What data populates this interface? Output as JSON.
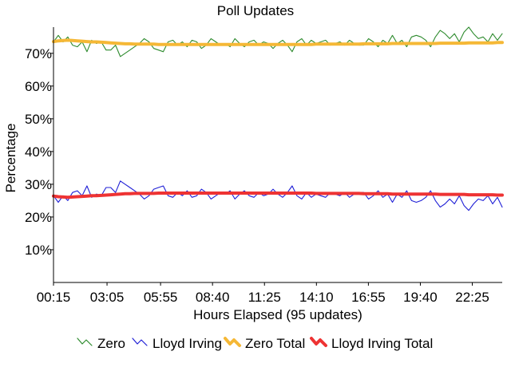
{
  "chart_data": {
    "type": "line",
    "title": "Poll Updates",
    "xlabel": "Hours Elapsed (95 updates)",
    "ylabel": "Percentage",
    "x_ticks": [
      "00:15",
      "03:05",
      "05:55",
      "08:40",
      "11:25",
      "14:10",
      "16:55",
      "19:40",
      "22:25"
    ],
    "y_ticks": [
      "10%",
      "20%",
      "30%",
      "40%",
      "50%",
      "60%",
      "70%"
    ],
    "ylim": [
      0,
      78
    ],
    "x_range_hours": [
      0.25,
      24
    ],
    "grid": false,
    "legend_position": "bottom",
    "series": [
      {
        "name": "Zero",
        "color": "#2e8b2e",
        "style": "thin",
        "values": [
          73.5,
          75.5,
          73.5,
          75.0,
          72.5,
          72.0,
          73.5,
          70.5,
          74.0,
          73.0,
          73.5,
          71.0,
          71.0,
          72.5,
          69.0,
          70.0,
          71.0,
          72.0,
          73.0,
          74.5,
          73.5,
          71.5,
          71.0,
          70.5,
          73.5,
          74.0,
          72.5,
          73.5,
          72.0,
          74.0,
          73.5,
          71.5,
          72.5,
          74.5,
          73.5,
          72.5,
          73.0,
          72.0,
          74.5,
          73.0,
          72.0,
          73.5,
          74.0,
          72.5,
          73.5,
          73.0,
          71.5,
          73.0,
          74.0,
          72.5,
          70.5,
          73.5,
          74.5,
          72.5,
          74.0,
          73.0,
          73.5,
          74.0,
          72.5,
          73.0,
          73.5,
          72.5,
          74.0,
          73.0,
          72.5,
          72.5,
          74.5,
          73.5,
          72.0,
          74.0,
          73.0,
          75.5,
          73.0,
          74.0,
          72.0,
          75.0,
          75.5,
          75.0,
          74.0,
          72.0,
          75.0,
          77.0,
          76.0,
          74.5,
          76.0,
          73.5,
          76.5,
          78.0,
          76.0,
          74.5,
          75.0,
          73.5,
          76.0,
          74.0,
          76.0
        ]
      },
      {
        "name": "Lloyd Irving",
        "color": "#1f1fd6",
        "style": "thin",
        "values": [
          26.5,
          24.5,
          26.5,
          25.0,
          27.5,
          28.0,
          26.5,
          29.5,
          26.0,
          27.0,
          26.5,
          29.0,
          29.0,
          27.5,
          31.0,
          30.0,
          29.0,
          28.0,
          27.0,
          25.5,
          26.5,
          28.5,
          29.0,
          29.5,
          26.5,
          26.0,
          27.5,
          26.5,
          28.0,
          26.0,
          26.5,
          28.5,
          27.5,
          25.5,
          26.5,
          27.5,
          27.0,
          28.0,
          25.5,
          27.0,
          28.0,
          26.5,
          26.0,
          27.5,
          26.5,
          27.0,
          28.5,
          27.0,
          26.0,
          27.5,
          29.5,
          26.5,
          25.5,
          27.5,
          26.0,
          27.0,
          26.5,
          26.0,
          27.5,
          27.0,
          26.5,
          27.5,
          26.0,
          27.0,
          27.5,
          27.5,
          25.5,
          26.5,
          28.0,
          26.0,
          27.0,
          24.5,
          27.0,
          26.0,
          28.0,
          25.0,
          24.5,
          25.0,
          26.0,
          28.0,
          25.0,
          23.0,
          24.0,
          25.5,
          24.0,
          26.5,
          23.5,
          22.0,
          24.0,
          25.5,
          25.0,
          26.5,
          24.0,
          26.0,
          23.0
        ]
      },
      {
        "name": "Zero Total",
        "color": "#f5b836",
        "style": "thick",
        "values": [
          73.6,
          73.8,
          73.9,
          74.0,
          73.9,
          73.8,
          73.7,
          73.6,
          73.5,
          73.5,
          73.4,
          73.3,
          73.2,
          73.1,
          73.0,
          72.9,
          72.9,
          72.8,
          72.8,
          72.8,
          72.8,
          72.8,
          72.7,
          72.7,
          72.7,
          72.7,
          72.7,
          72.7,
          72.7,
          72.7,
          72.7,
          72.7,
          72.7,
          72.7,
          72.7,
          72.7,
          72.7,
          72.7,
          72.7,
          72.7,
          72.7,
          72.7,
          72.7,
          72.7,
          72.7,
          72.7,
          72.7,
          72.7,
          72.7,
          72.7,
          72.7,
          72.7,
          72.7,
          72.7,
          72.7,
          72.8,
          72.8,
          72.8,
          72.8,
          72.8,
          72.8,
          72.8,
          72.8,
          72.8,
          72.8,
          72.9,
          72.9,
          72.9,
          72.9,
          72.9,
          72.9,
          73.0,
          73.0,
          73.0,
          73.0,
          73.0,
          73.0,
          73.0,
          73.0,
          73.0,
          73.0,
          73.1,
          73.1,
          73.1,
          73.1,
          73.1,
          73.1,
          73.2,
          73.2,
          73.2,
          73.2,
          73.2,
          73.2,
          73.3,
          73.3
        ]
      },
      {
        "name": "Lloyd Irving Total",
        "color": "#ee3333",
        "style": "thick",
        "values": [
          26.4,
          26.2,
          26.1,
          26.0,
          26.1,
          26.2,
          26.3,
          26.4,
          26.5,
          26.5,
          26.6,
          26.7,
          26.8,
          26.9,
          27.0,
          27.1,
          27.1,
          27.2,
          27.2,
          27.2,
          27.2,
          27.2,
          27.3,
          27.3,
          27.3,
          27.3,
          27.3,
          27.3,
          27.3,
          27.3,
          27.3,
          27.3,
          27.3,
          27.3,
          27.3,
          27.3,
          27.3,
          27.3,
          27.3,
          27.3,
          27.3,
          27.3,
          27.3,
          27.3,
          27.3,
          27.3,
          27.3,
          27.3,
          27.3,
          27.3,
          27.3,
          27.3,
          27.3,
          27.3,
          27.3,
          27.2,
          27.2,
          27.2,
          27.2,
          27.2,
          27.2,
          27.2,
          27.2,
          27.2,
          27.2,
          27.1,
          27.1,
          27.1,
          27.1,
          27.1,
          27.1,
          27.0,
          27.0,
          27.0,
          27.0,
          27.0,
          27.0,
          27.0,
          27.0,
          27.0,
          27.0,
          26.9,
          26.9,
          26.9,
          26.9,
          26.9,
          26.9,
          26.8,
          26.8,
          26.8,
          26.8,
          26.8,
          26.8,
          26.7,
          26.7
        ]
      }
    ]
  }
}
